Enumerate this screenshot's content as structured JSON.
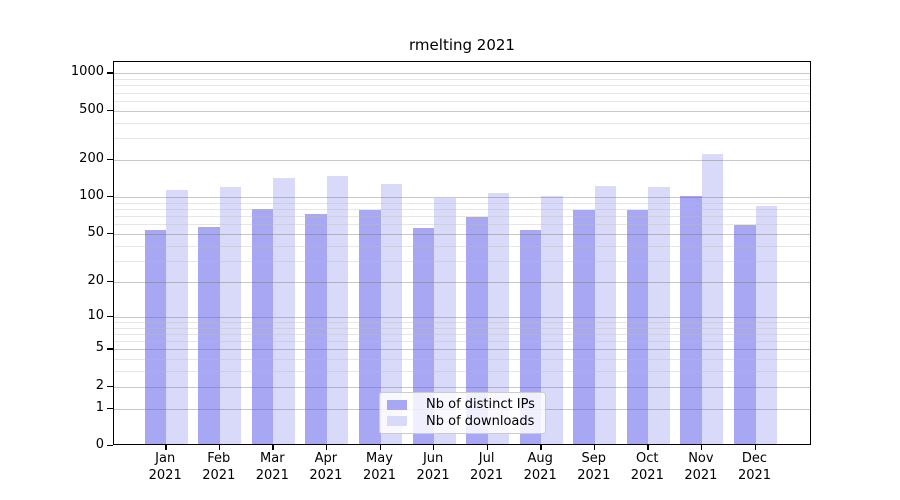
{
  "chart_data": {
    "type": "bar",
    "title": "rmelting 2021",
    "categories": [
      "Jan",
      "Feb",
      "Mar",
      "Apr",
      "May",
      "Jun",
      "Jul",
      "Aug",
      "Sep",
      "Oct",
      "Nov",
      "Dec"
    ],
    "category_year": "2021",
    "series": [
      {
        "name": "Nb of distinct IPs",
        "color": "#a7a7f4",
        "values": [
          52,
          55,
          77,
          70,
          76,
          54,
          66,
          52,
          76,
          75,
          98,
          57
        ]
      },
      {
        "name": "Nb of downloads",
        "color": "#d9d9f9",
        "values": [
          111,
          117,
          139,
          144,
          123,
          94,
          104,
          98,
          118,
          116,
          216,
          82
        ]
      }
    ],
    "y_axis": {
      "scale": "log10(1+x)",
      "ticks": [
        0,
        1,
        2,
        5,
        10,
        20,
        50,
        100,
        200,
        500,
        1000
      ],
      "top_value": 1250
    },
    "x_axis": {
      "label_format": "month-over-year"
    },
    "legend": {
      "position": "bottom-center"
    },
    "grid": "on",
    "colors": {
      "major_gridline": "#c6c6c6",
      "minor_gridline": "#ececec",
      "axis": "#000000"
    }
  }
}
